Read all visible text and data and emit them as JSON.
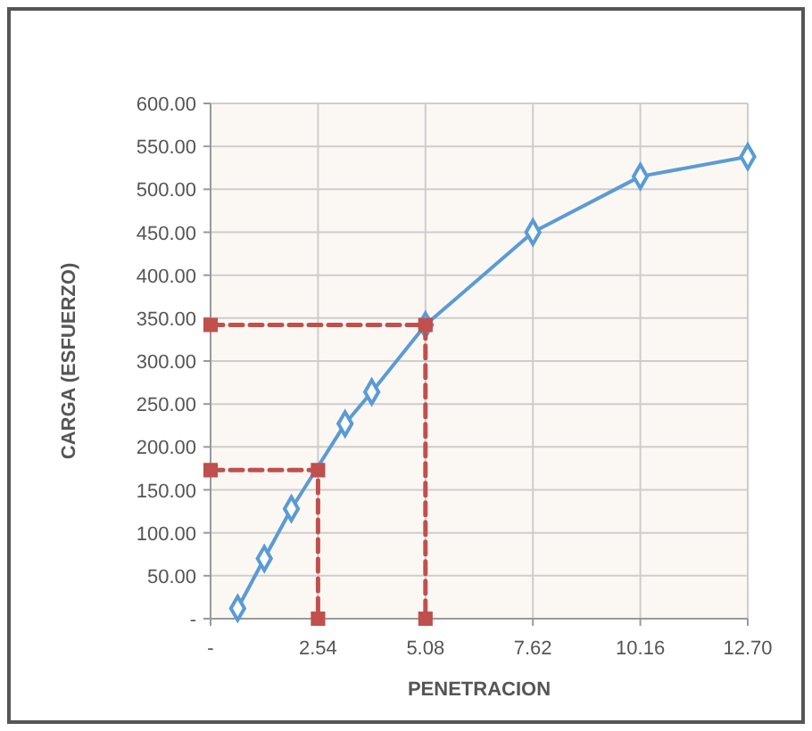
{
  "chart_data": {
    "type": "line",
    "xlabel": "PENETRACION",
    "ylabel": "CARGA (ESFUERZO)",
    "xlim": [
      0,
      12.7
    ],
    "xticks": [
      {
        "value": 0,
        "label": "-"
      },
      {
        "value": 2.54,
        "label": "2.54"
      },
      {
        "value": 5.08,
        "label": "5.08"
      },
      {
        "value": 7.62,
        "label": "7.62"
      },
      {
        "value": 10.16,
        "label": "10.16"
      },
      {
        "value": 12.7,
        "label": "12.70"
      }
    ],
    "ylim": [
      0,
      600
    ],
    "yticks": [
      {
        "value": 0,
        "label": "-"
      },
      {
        "value": 50,
        "label": "50.00"
      },
      {
        "value": 100,
        "label": "100.00"
      },
      {
        "value": 150,
        "label": "150.00"
      },
      {
        "value": 200,
        "label": "200.00"
      },
      {
        "value": 250,
        "label": "250.00"
      },
      {
        "value": 300,
        "label": "300.00"
      },
      {
        "value": 350,
        "label": "350.00"
      },
      {
        "value": 400,
        "label": "400.00"
      },
      {
        "value": 450,
        "label": "450.00"
      },
      {
        "value": 500,
        "label": "500.00"
      },
      {
        "value": 550,
        "label": "550.00"
      },
      {
        "value": 600,
        "label": "600.00"
      }
    ],
    "grid": true,
    "series": [
      {
        "color": "#5b9bd5",
        "marker": "diamond",
        "line_style": "solid",
        "x": [
          0.64,
          1.27,
          1.91,
          3.18,
          3.81,
          5.08,
          7.62,
          10.16,
          12.7
        ],
        "values": [
          12,
          70,
          128,
          227,
          264,
          342,
          450,
          515,
          538
        ]
      },
      {
        "color": "#c0504d",
        "marker": "square",
        "line_style": "dashed",
        "x": [
          0,
          2.54,
          2.54
        ],
        "values": [
          173,
          173,
          0
        ]
      },
      {
        "color": "#c0504d",
        "marker": "square",
        "line_style": "dashed",
        "x": [
          0,
          5.08,
          5.08
        ],
        "values": [
          342,
          342,
          0
        ]
      }
    ]
  }
}
